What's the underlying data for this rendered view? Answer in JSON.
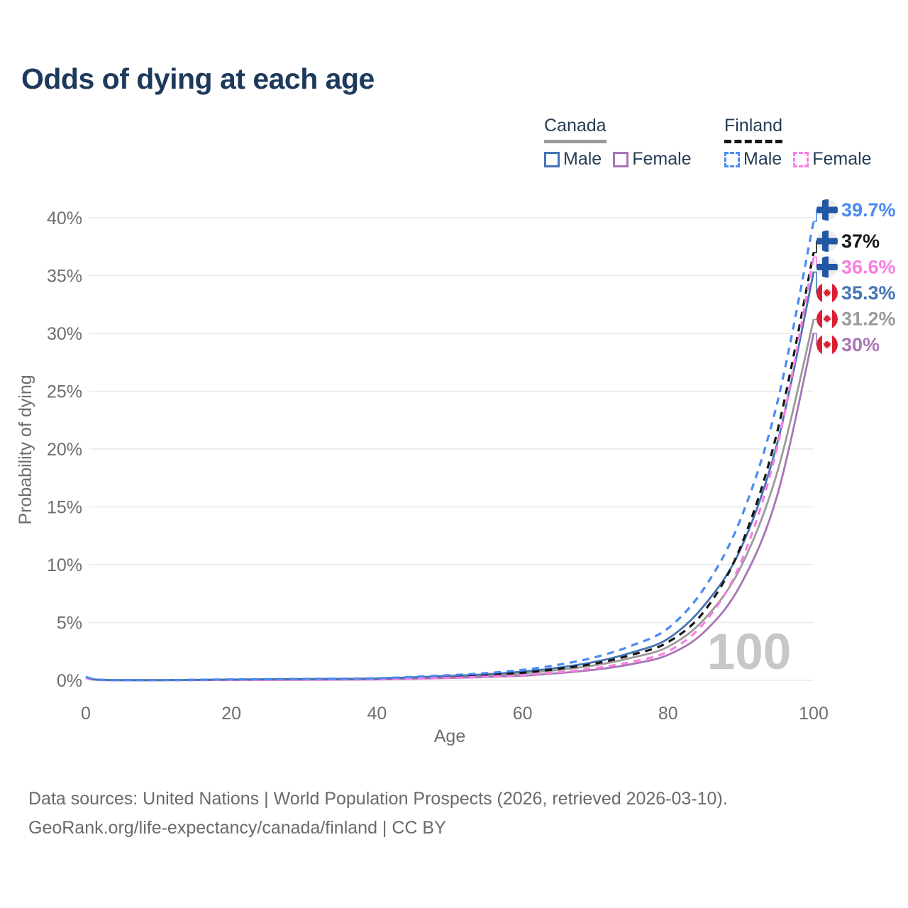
{
  "title": "Odds of dying at each age",
  "legend": {
    "groups": [
      {
        "label": "Canada",
        "line_style": "solid",
        "line_color": "#9b9b9b",
        "items": [
          {
            "label": "Male",
            "color": "#4574b4",
            "dashed": false
          },
          {
            "label": "Female",
            "color": "#a974b6",
            "dashed": false
          }
        ]
      },
      {
        "label": "Finland",
        "line_style": "dashed",
        "line_color": "#161616",
        "items": [
          {
            "label": "Male",
            "color": "#4a8af4",
            "dashed": true
          },
          {
            "label": "Female",
            "color": "#f87ee1",
            "dashed": true
          }
        ]
      }
    ]
  },
  "chart_data": {
    "type": "line",
    "title": "Odds of dying at each age",
    "xlabel": "Age",
    "ylabel": "Probability of dying",
    "xlim": [
      0,
      100
    ],
    "ylim": [
      0,
      40
    ],
    "grid": "horizontal",
    "legend_position": "top-right",
    "x_ticks": [
      "0",
      "20",
      "40",
      "60",
      "80",
      "100"
    ],
    "y_ticks": [
      "0%",
      "5%",
      "10%",
      "15%",
      "20%",
      "25%",
      "30%",
      "35%",
      "40%"
    ],
    "watermark": "100",
    "x": [
      0,
      2,
      10,
      20,
      30,
      40,
      50,
      55,
      60,
      65,
      70,
      75,
      80,
      85,
      90,
      95,
      100
    ],
    "series": [
      {
        "id": "canada-total",
        "name": "Canada Total",
        "color": "#9b9b9b",
        "dashed": false,
        "values": [
          0.2,
          0.03,
          0.015,
          0.05,
          0.08,
          0.12,
          0.3,
          0.4,
          0.6,
          0.9,
          1.3,
          1.95,
          2.9,
          5.3,
          9.8,
          18.0,
          31.2
        ],
        "end_value": 31.2,
        "end_label": "31.2%",
        "flag": "canada"
      },
      {
        "id": "canada-female",
        "name": "Canada Female",
        "color": "#a974b6",
        "dashed": false,
        "values": [
          0.2,
          0.03,
          0.01,
          0.03,
          0.05,
          0.08,
          0.2,
          0.28,
          0.4,
          0.62,
          0.92,
          1.4,
          2.2,
          4.2,
          8.3,
          16.0,
          30.0
        ],
        "end_value": 30.0,
        "end_label": "30%",
        "flag": "canada"
      },
      {
        "id": "canada-male",
        "name": "Canada Male",
        "color": "#4574b4",
        "dashed": false,
        "values": [
          0.25,
          0.04,
          0.02,
          0.07,
          0.11,
          0.16,
          0.38,
          0.52,
          0.75,
          1.1,
          1.6,
          2.4,
          3.6,
          6.5,
          11.4,
          20.5,
          35.3
        ],
        "end_value": 35.3,
        "end_label": "35.3%",
        "flag": "canada"
      },
      {
        "id": "finland-total",
        "name": "Finland Total",
        "color": "#161616",
        "dashed": true,
        "values": [
          0.25,
          0.04,
          0.02,
          0.05,
          0.08,
          0.13,
          0.33,
          0.46,
          0.65,
          1.0,
          1.45,
          2.2,
          3.3,
          6.0,
          11.6,
          21.5,
          37.0
        ],
        "end_value": 37.0,
        "end_label": "37%",
        "flag": "finland"
      },
      {
        "id": "finland-female",
        "name": "Finland Female",
        "color": "#f87ee1",
        "dashed": true,
        "values": [
          0.2,
          0.03,
          0.01,
          0.03,
          0.05,
          0.08,
          0.22,
          0.32,
          0.45,
          0.7,
          1.05,
          1.6,
          2.5,
          5.0,
          10.2,
          20.2,
          36.6
        ],
        "end_value": 36.6,
        "end_label": "36.6%",
        "flag": "finland"
      },
      {
        "id": "finland-male",
        "name": "Finland Male",
        "color": "#4a8af4",
        "dashed": true,
        "values": [
          0.3,
          0.05,
          0.02,
          0.08,
          0.12,
          0.18,
          0.45,
          0.62,
          0.9,
          1.35,
          2.0,
          3.0,
          4.5,
          8.0,
          14.0,
          24.0,
          39.7
        ],
        "end_value": 39.7,
        "end_label": "39.7%",
        "flag": "finland"
      }
    ],
    "end_labels_order": [
      "finland-male",
      "finland-total",
      "finland-female",
      "canada-male",
      "canada-total",
      "canada-female"
    ]
  },
  "flags": {
    "finland": {
      "bg": "#ededed",
      "cross": "#2257a5"
    },
    "canada": {
      "bg": "#da2033",
      "band": "#ffffff",
      "leaf": "#da2033"
    }
  },
  "colors": {
    "title": "#1d3a5c",
    "axis_text": "#6e6e6e",
    "gridline": "#e9e9e9",
    "watermark": "#c7c7c7",
    "footer": "#6a6a6a"
  },
  "footer": {
    "line1": "Data sources: United Nations | World Population Prospects (2026, retrieved 2026-03-10).",
    "line2": "GeoRank.org/life-expectancy/canada/finland | CC BY"
  }
}
